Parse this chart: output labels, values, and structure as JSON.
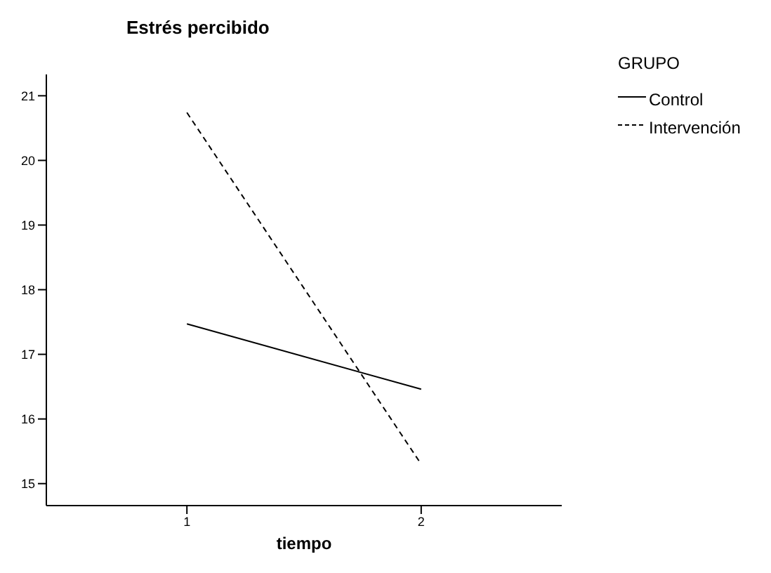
{
  "chart_data": {
    "type": "line",
    "title": "Estrés percibido",
    "xlabel": "tiempo",
    "legend_title": "GRUPO",
    "categories": [
      "1",
      "2"
    ],
    "series": [
      {
        "name": "Control",
        "color": "#000000",
        "line_style": "solid",
        "values": [
          17.47,
          16.46
        ]
      },
      {
        "name": "Intervención",
        "color": "#000000",
        "line_style": "dashed",
        "values": [
          20.74,
          15.3
        ]
      }
    ],
    "ylim": [
      14.66,
      21.33
    ],
    "yticks": [
      15,
      16,
      17,
      18,
      19,
      20,
      21
    ],
    "legend": "right",
    "marker": "none"
  }
}
